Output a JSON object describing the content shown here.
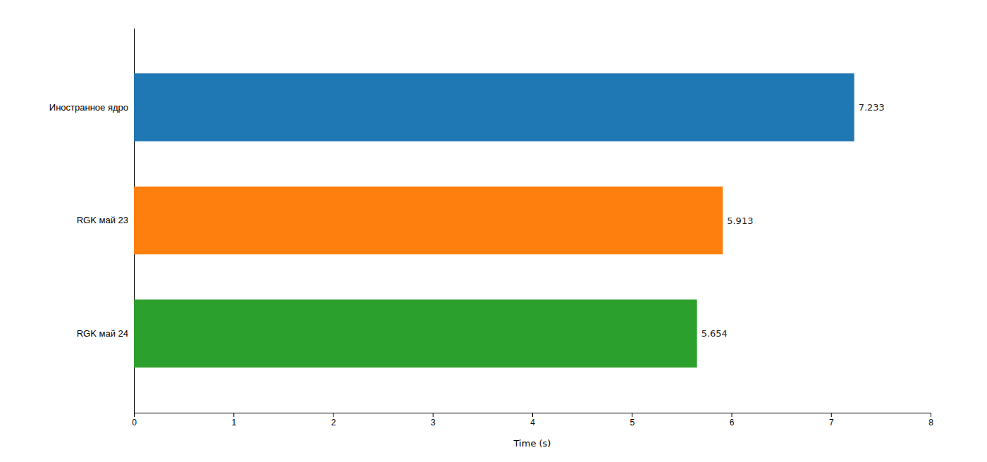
{
  "chart_data": {
    "type": "bar",
    "orientation": "horizontal",
    "categories": [
      "RGK май 24",
      "RGK май 23",
      "Иностранное ядро"
    ],
    "values": [
      5.654,
      5.913,
      7.233
    ],
    "colors": [
      "#2ca02c",
      "#ff7f0e",
      "#1f77b4"
    ],
    "xlabel": "Time (s)",
    "xlim": [
      0,
      8
    ],
    "xticks": [
      0,
      1,
      2,
      3,
      4,
      5,
      6,
      7,
      8
    ],
    "data_labels": true,
    "grid": false
  }
}
